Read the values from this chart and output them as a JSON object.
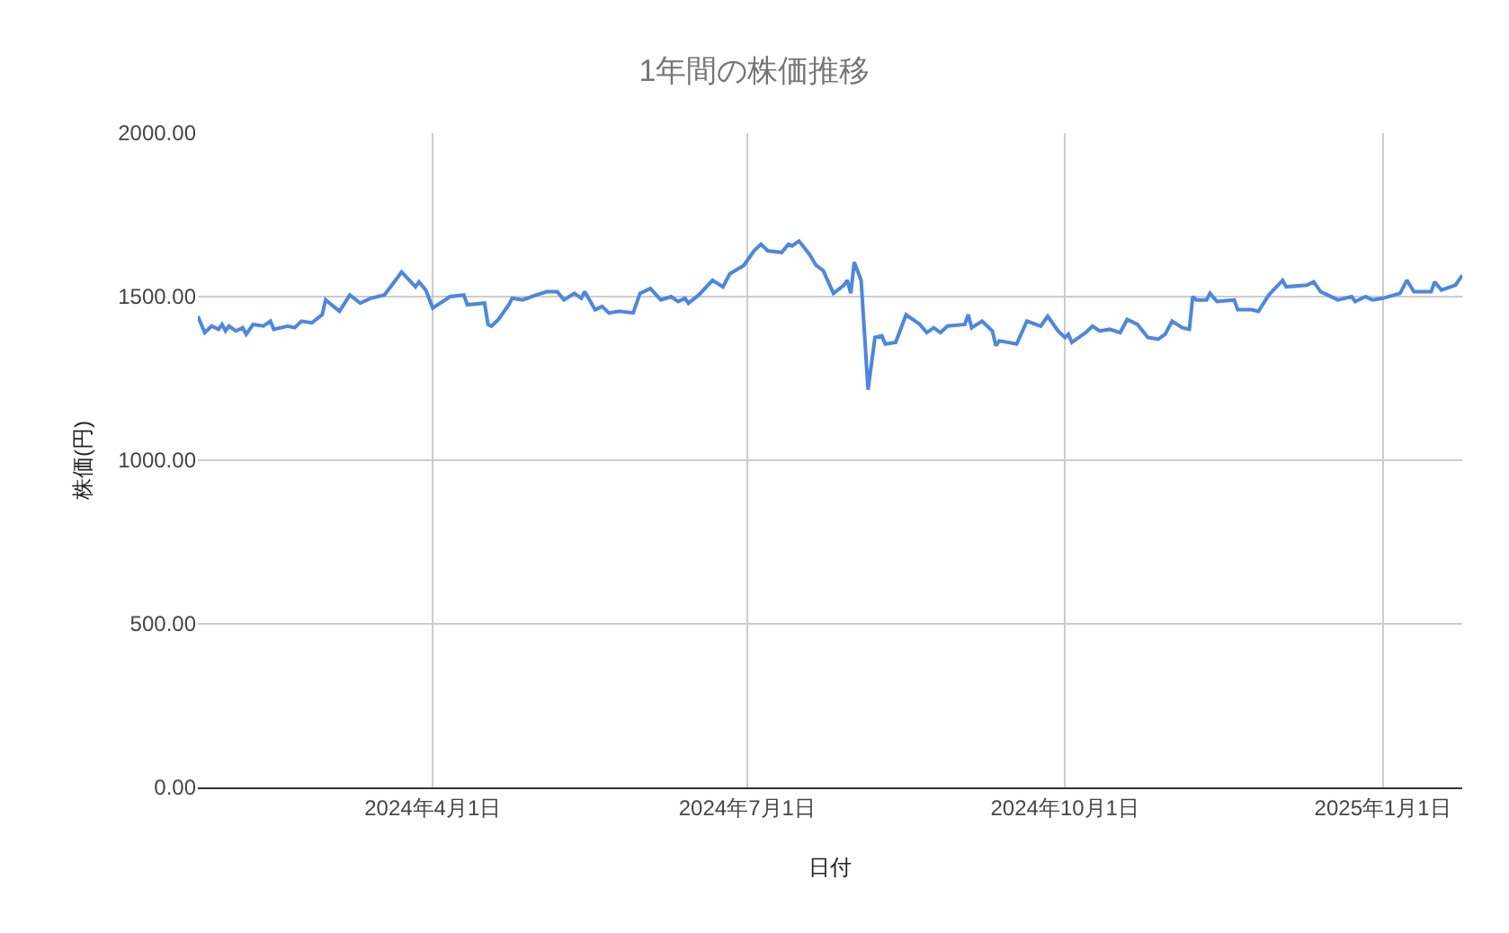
{
  "chart_data": {
    "type": "line",
    "title": "1年間の株価推移",
    "xlabel": "日付",
    "ylabel": "株価(円)",
    "x": [
      "2024-01-24",
      "2024-01-26",
      "2024-01-28",
      "2024-01-30",
      "2024-01-31",
      "2024-02-01",
      "2024-02-02",
      "2024-02-04",
      "2024-02-06",
      "2024-02-07",
      "2024-02-09",
      "2024-02-12",
      "2024-02-14",
      "2024-02-15",
      "2024-02-19",
      "2024-02-21",
      "2024-02-23",
      "2024-02-26",
      "2024-02-29",
      "2024-03-01",
      "2024-03-05",
      "2024-03-08",
      "2024-03-11",
      "2024-03-14",
      "2024-03-18",
      "2024-03-23",
      "2024-03-27",
      "2024-03-28",
      "2024-03-30",
      "2024-04-01",
      "2024-04-06",
      "2024-04-10",
      "2024-04-11",
      "2024-04-16",
      "2024-04-17",
      "2024-04-18",
      "2024-04-20",
      "2024-04-23",
      "2024-04-24",
      "2024-04-27",
      "2024-05-01",
      "2024-05-04",
      "2024-05-07",
      "2024-05-09",
      "2024-05-12",
      "2024-05-14",
      "2024-05-15",
      "2024-05-18",
      "2024-05-20",
      "2024-05-22",
      "2024-05-25",
      "2024-05-29",
      "2024-05-31",
      "2024-06-03",
      "2024-06-06",
      "2024-06-09",
      "2024-06-11",
      "2024-06-13",
      "2024-06-14",
      "2024-06-17",
      "2024-06-21",
      "2024-06-24",
      "2024-06-26",
      "2024-06-30",
      "2024-07-03",
      "2024-07-05",
      "2024-07-07",
      "2024-07-11",
      "2024-07-13",
      "2024-07-14",
      "2024-07-16",
      "2024-07-19",
      "2024-07-21",
      "2024-07-23",
      "2024-07-26",
      "2024-07-29",
      "2024-07-30",
      "2024-07-31",
      "2024-08-01",
      "2024-08-03",
      "2024-08-05",
      "2024-08-07",
      "2024-08-09",
      "2024-08-10",
      "2024-08-13",
      "2024-08-16",
      "2024-08-20",
      "2024-08-22",
      "2024-08-24",
      "2024-08-26",
      "2024-08-28",
      "2024-09-02",
      "2024-09-03",
      "2024-09-04",
      "2024-09-07",
      "2024-09-10",
      "2024-09-11",
      "2024-09-12",
      "2024-09-17",
      "2024-09-20",
      "2024-09-24",
      "2024-09-26",
      "2024-09-29",
      "2024-10-01",
      "2024-10-02",
      "2024-10-03",
      "2024-10-07",
      "2024-10-09",
      "2024-10-11",
      "2024-10-14",
      "2024-10-17",
      "2024-10-19",
      "2024-10-22",
      "2024-10-25",
      "2024-10-28",
      "2024-10-30",
      "2024-11-01",
      "2024-11-04",
      "2024-11-06",
      "2024-11-07",
      "2024-11-08",
      "2024-11-11",
      "2024-11-12",
      "2024-11-14",
      "2024-11-19",
      "2024-11-20",
      "2024-11-24",
      "2024-11-26",
      "2024-11-29",
      "2024-12-03",
      "2024-12-04",
      "2024-12-10",
      "2024-12-12",
      "2024-12-14",
      "2024-12-16",
      "2024-12-19",
      "2024-12-23",
      "2024-12-24",
      "2024-12-27",
      "2024-12-29",
      "2025-01-01",
      "2025-01-06",
      "2025-01-08",
      "2025-01-10",
      "2025-01-15",
      "2025-01-16",
      "2025-01-18",
      "2025-01-22",
      "2025-01-23",
      "2025-01-24"
    ],
    "series": [
      {
        "color": "#4a86e8",
        "values": [
          1440,
          1390,
          1410,
          1400,
          1415,
          1395,
          1410,
          1395,
          1405,
          1385,
          1415,
          1410,
          1425,
          1400,
          1410,
          1405,
          1425,
          1420,
          1445,
          1490,
          1455,
          1505,
          1480,
          1495,
          1505,
          1575,
          1530,
          1545,
          1520,
          1465,
          1500,
          1505,
          1475,
          1480,
          1415,
          1410,
          1430,
          1475,
          1495,
          1490,
          1505,
          1515,
          1515,
          1490,
          1510,
          1495,
          1515,
          1460,
          1470,
          1450,
          1455,
          1450,
          1510,
          1525,
          1490,
          1500,
          1485,
          1495,
          1480,
          1505,
          1550,
          1530,
          1570,
          1595,
          1640,
          1660,
          1640,
          1635,
          1660,
          1655,
          1670,
          1630,
          1595,
          1580,
          1510,
          1535,
          1550,
          1510,
          1605,
          1550,
          1215,
          1375,
          1380,
          1355,
          1360,
          1445,
          1415,
          1390,
          1405,
          1390,
          1410,
          1415,
          1445,
          1405,
          1425,
          1395,
          1350,
          1365,
          1355,
          1425,
          1410,
          1440,
          1395,
          1375,
          1385,
          1360,
          1390,
          1410,
          1395,
          1400,
          1390,
          1430,
          1415,
          1375,
          1370,
          1385,
          1425,
          1405,
          1400,
          1500,
          1490,
          1490,
          1510,
          1485,
          1490,
          1460,
          1460,
          1455,
          1505,
          1550,
          1530,
          1535,
          1545,
          1515,
          1505,
          1490,
          1500,
          1485,
          1500,
          1490,
          1495,
          1510,
          1550,
          1515,
          1515,
          1545,
          1520,
          1535,
          1550,
          1565
        ]
      }
    ],
    "xlim": [
      "2024-01-24",
      "2025-01-24"
    ],
    "xticks": [
      {
        "value": "2024-04-01",
        "label": "2024年4月1日"
      },
      {
        "value": "2024-07-01",
        "label": "2024年7月1日"
      },
      {
        "value": "2024-10-01",
        "label": "2024年10月1日"
      },
      {
        "value": "2025-01-01",
        "label": "2025年1月1日"
      }
    ],
    "ylim": [
      0,
      2000
    ],
    "yticks": [
      {
        "value": 0,
        "label": "0.00"
      },
      {
        "value": 500,
        "label": "500.00"
      },
      {
        "value": 1000,
        "label": "1000.00"
      },
      {
        "value": 1500,
        "label": "1500.00"
      },
      {
        "value": 2000,
        "label": "2000.00"
      }
    ],
    "grid": true,
    "marker": "none",
    "line_style": "solid"
  }
}
